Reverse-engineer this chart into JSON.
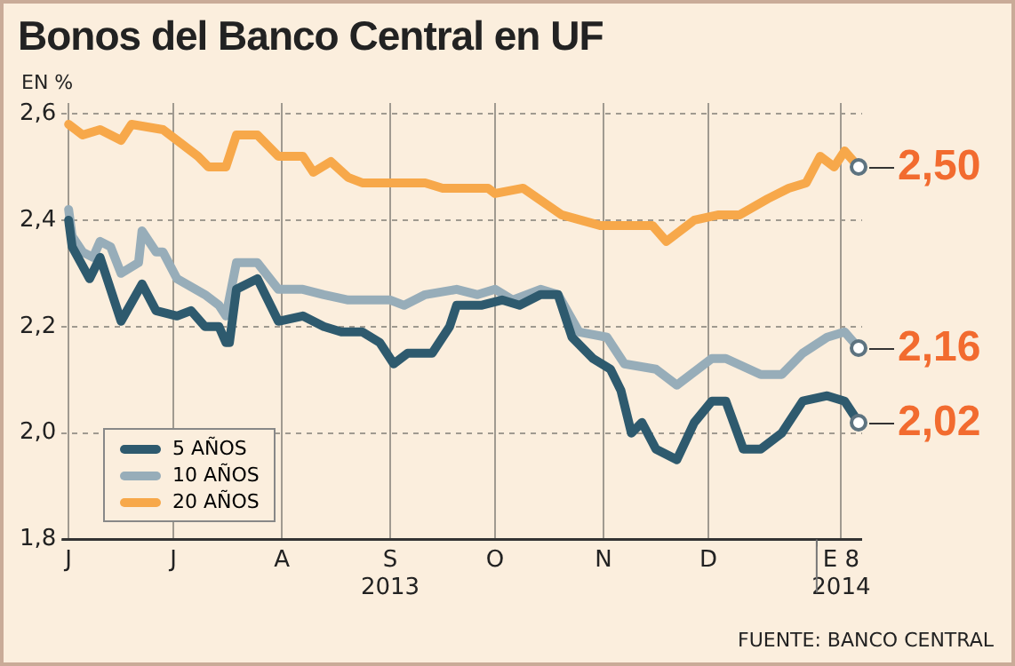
{
  "chart_data": {
    "type": "line",
    "title": "Bonos del Banco Central en UF",
    "ylabel": "EN %",
    "xlim": [
      "2013-05-30",
      "2014-01-14"
    ],
    "ylim": [
      1.8,
      2.62
    ],
    "xticks": [
      {
        "value": "2013-06-01",
        "label": "J"
      },
      {
        "value": "2013-07-01",
        "label": "J"
      },
      {
        "value": "2013-08-01",
        "label": "A"
      },
      {
        "value": "2013-09-01",
        "label": "S\n2013"
      },
      {
        "value": "2013-10-01",
        "label": "O"
      },
      {
        "value": "2013-11-01",
        "label": "N"
      },
      {
        "value": "2013-12-01",
        "label": "D"
      },
      {
        "value": "2014-01-01",
        "label": null
      },
      {
        "value": "2014-01-08",
        "label": "E 8\n2014"
      }
    ],
    "yticks": [
      {
        "value": 1.8,
        "label": "1,8"
      },
      {
        "value": 2.0,
        "label": "2,0"
      },
      {
        "value": 2.2,
        "label": "2,2"
      },
      {
        "value": 2.4,
        "label": "2,4"
      },
      {
        "value": 2.6,
        "label": "2,6"
      }
    ],
    "grid": true,
    "legend": "bottom left",
    "line_style": "solid",
    "marker": "none",
    "series": [
      {
        "name": "5 AÑOS",
        "color": "#2e5a6e",
        "x": [
          "2013-06-01",
          "2013-06-02",
          "2013-06-07",
          "2013-06-10",
          "2013-06-16",
          "2013-06-22",
          "2013-06-26",
          "2013-07-02",
          "2013-07-06",
          "2013-07-10",
          "2013-07-14",
          "2013-07-16",
          "2013-07-17",
          "2013-07-19",
          "2013-07-25",
          "2013-07-31",
          "2013-08-07",
          "2013-08-13",
          "2013-08-18",
          "2013-08-24",
          "2013-08-29",
          "2013-09-02",
          "2013-09-06",
          "2013-09-13",
          "2013-09-18",
          "2013-09-20",
          "2013-09-27",
          "2013-10-03",
          "2013-10-08",
          "2013-10-14",
          "2013-10-19",
          "2013-10-23",
          "2013-10-29",
          "2013-11-03",
          "2013-11-06",
          "2013-11-09",
          "2013-11-12",
          "2013-11-16",
          "2013-11-22",
          "2013-11-27",
          "2013-12-02",
          "2013-12-06",
          "2013-12-11",
          "2013-12-16",
          "2013-12-22",
          "2013-12-28",
          "2014-01-04",
          "2014-01-09",
          "2014-01-13"
        ],
        "values": [
          2.4,
          2.35,
          2.29,
          2.33,
          2.21,
          2.28,
          2.23,
          2.22,
          2.23,
          2.2,
          2.2,
          2.17,
          2.17,
          2.27,
          2.29,
          2.21,
          2.22,
          2.2,
          2.19,
          2.19,
          2.17,
          2.13,
          2.15,
          2.15,
          2.2,
          2.24,
          2.24,
          2.25,
          2.24,
          2.26,
          2.26,
          2.18,
          2.14,
          2.12,
          2.08,
          2.0,
          2.02,
          1.97,
          1.95,
          2.02,
          2.06,
          2.06,
          1.97,
          1.97,
          2.0,
          2.06,
          2.07,
          2.06,
          2.02
        ]
      },
      {
        "name": "10 AÑOS",
        "color": "#97adb9",
        "x": [
          "2013-06-01",
          "2013-06-02",
          "2013-06-05",
          "2013-06-08",
          "2013-06-10",
          "2013-06-13",
          "2013-06-16",
          "2013-06-21",
          "2013-06-22",
          "2013-06-26",
          "2013-06-28",
          "2013-07-02",
          "2013-07-10",
          "2013-07-14",
          "2013-07-16",
          "2013-07-19",
          "2013-07-25",
          "2013-07-31",
          "2013-08-07",
          "2013-08-13",
          "2013-08-20",
          "2013-09-01",
          "2013-09-05",
          "2013-09-11",
          "2013-09-20",
          "2013-09-26",
          "2013-10-01",
          "2013-10-06",
          "2013-10-14",
          "2013-10-19",
          "2013-10-25",
          "2013-11-02",
          "2013-11-07",
          "2013-11-16",
          "2013-11-22",
          "2013-12-02",
          "2013-12-06",
          "2013-12-16",
          "2013-12-22",
          "2013-12-28",
          "2014-01-04",
          "2014-01-09",
          "2014-01-13"
        ],
        "values": [
          2.42,
          2.37,
          2.34,
          2.33,
          2.36,
          2.35,
          2.3,
          2.32,
          2.38,
          2.34,
          2.34,
          2.29,
          2.26,
          2.24,
          2.22,
          2.32,
          2.32,
          2.27,
          2.27,
          2.26,
          2.25,
          2.25,
          2.24,
          2.26,
          2.27,
          2.26,
          2.27,
          2.25,
          2.27,
          2.26,
          2.19,
          2.18,
          2.13,
          2.12,
          2.09,
          2.14,
          2.14,
          2.11,
          2.11,
          2.15,
          2.18,
          2.19,
          2.16
        ]
      },
      {
        "name": "20 AÑOS",
        "color": "#f7a84a",
        "x": [
          "2013-06-01",
          "2013-06-05",
          "2013-06-10",
          "2013-06-16",
          "2013-06-19",
          "2013-06-28",
          "2013-07-02",
          "2013-07-08",
          "2013-07-11",
          "2013-07-16",
          "2013-07-19",
          "2013-07-25",
          "2013-07-31",
          "2013-08-07",
          "2013-08-10",
          "2013-08-15",
          "2013-08-20",
          "2013-08-24",
          "2013-09-11",
          "2013-09-16",
          "2013-09-29",
          "2013-10-01",
          "2013-10-09",
          "2013-10-20",
          "2013-10-31",
          "2013-11-15",
          "2013-11-19",
          "2013-11-27",
          "2013-12-04",
          "2013-12-10",
          "2013-12-18",
          "2013-12-24",
          "2013-12-29",
          "2014-01-02",
          "2014-01-06",
          "2014-01-09",
          "2014-01-13"
        ],
        "values": [
          2.58,
          2.56,
          2.57,
          2.55,
          2.58,
          2.57,
          2.55,
          2.52,
          2.5,
          2.5,
          2.56,
          2.56,
          2.52,
          2.52,
          2.49,
          2.51,
          2.48,
          2.47,
          2.47,
          2.46,
          2.46,
          2.45,
          2.46,
          2.41,
          2.39,
          2.39,
          2.36,
          2.4,
          2.41,
          2.41,
          2.44,
          2.46,
          2.47,
          2.52,
          2.5,
          2.53,
          2.5
        ]
      }
    ],
    "annotations": [
      {
        "text": "2,50",
        "x": "2014-01-13",
        "y": 2.5
      },
      {
        "text": "2,16",
        "x": "2014-01-13",
        "y": 2.16
      },
      {
        "text": "2,02",
        "x": "2014-01-13",
        "y": 2.02
      },
      "FUENTE: BANCO CENTRAL"
    ]
  }
}
